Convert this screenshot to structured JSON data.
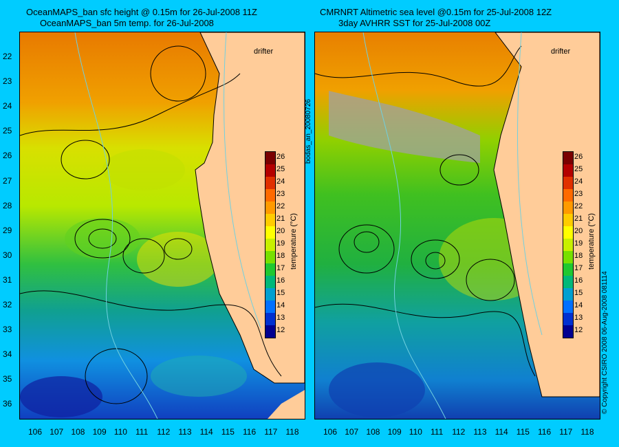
{
  "left_panel": {
    "title_line1": "OceanMAPS_ban sfc height @ 0.15m for 26-Jul-2008 11Z",
    "title_line2": "OceanMAPS_ban 5m temp. for 26-Jul-2008",
    "drifter_label": "drifter"
  },
  "right_panel": {
    "title_line1": "CMRNRT Altimetric sea level  @0.15m  for 25-Jul-2008 12Z",
    "title_line2": "3day AVHRR SST for 25-Jul-2008 00Z",
    "drifter_label": "drifter"
  },
  "side_text": {
    "left": "bodas_an_20080726",
    "right": "© Copyright CSIRO 2008    06-Aug-2008 081114"
  },
  "colorbar": {
    "title": "temperature (°C)",
    "ticks": [
      "26",
      "25",
      "24",
      "23",
      "22",
      "21",
      "20",
      "19",
      "18",
      "17",
      "16",
      "15",
      "14",
      "13",
      "12"
    ],
    "colors": [
      "#7a0000",
      "#b40000",
      "#e03000",
      "#ff6a00",
      "#ff9a00",
      "#ffcc00",
      "#ffff00",
      "#c8f000",
      "#78e000",
      "#20c830",
      "#00b878",
      "#00a0d0",
      "#0070ff",
      "#0030d0",
      "#000090"
    ]
  },
  "axes": {
    "lat_labels": [
      "22",
      "23",
      "24",
      "25",
      "26",
      "27",
      "28",
      "29",
      "30",
      "31",
      "32",
      "33",
      "34",
      "35",
      "36"
    ],
    "lon_labels": [
      "106",
      "107",
      "108",
      "109",
      "110",
      "111",
      "112",
      "113",
      "114",
      "115",
      "116",
      "117",
      "118"
    ]
  },
  "colors": {
    "background": "#00ccff",
    "land": "#ffcc99",
    "drifter": "#ff33ff"
  }
}
